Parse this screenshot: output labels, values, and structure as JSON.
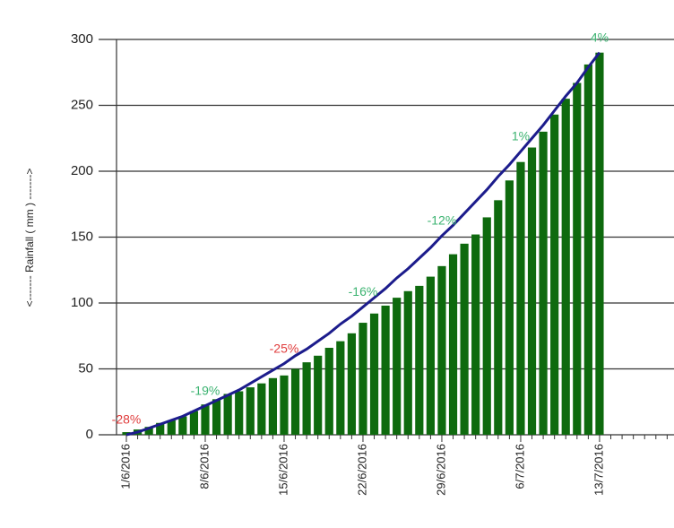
{
  "chart_data": {
    "type": "bar",
    "y_label": "<------- Rainfall ( mm ) ------->",
    "categories": [
      "1/6/2016",
      null,
      null,
      null,
      null,
      null,
      null,
      "8/6/2016",
      null,
      null,
      null,
      null,
      null,
      null,
      "15/6/2016",
      null,
      null,
      null,
      null,
      null,
      null,
      "22/6/2016",
      null,
      null,
      null,
      null,
      null,
      null,
      "29/6/2016",
      null,
      null,
      null,
      null,
      null,
      null,
      "6/7/2016",
      null,
      null,
      null,
      null,
      null,
      null,
      "13/7/2016",
      null,
      null,
      null,
      null,
      null,
      null
    ],
    "series": [
      {
        "type": "bar",
        "color": "#0e6a0e",
        "values": [
          2,
          4,
          6,
          9,
          11,
          14,
          18,
          23,
          27,
          31,
          33,
          36,
          39,
          43,
          45,
          50,
          55,
          60,
          66,
          71,
          77,
          85,
          92,
          98,
          104,
          109,
          113,
          120,
          128,
          137,
          145,
          152,
          165,
          178,
          193,
          207,
          218,
          230,
          243,
          255,
          267,
          281,
          290,
          null,
          null,
          null,
          null,
          null,
          null
        ]
      },
      {
        "type": "line",
        "color": "#1c1c8c",
        "values": [
          0,
          2,
          5,
          8,
          11,
          14,
          18,
          22,
          26,
          30,
          34,
          39,
          44,
          49,
          54,
          60,
          65,
          71,
          77,
          84,
          90,
          97,
          104,
          111,
          119,
          126,
          134,
          142,
          151,
          159,
          168,
          177,
          186,
          196,
          205,
          215,
          225,
          235,
          246,
          257,
          267,
          279,
          290,
          null,
          null,
          null,
          null,
          null,
          null
        ],
        "value_labels": [
          "-28%",
          null,
          null,
          null,
          null,
          null,
          null,
          "-19%",
          null,
          null,
          null,
          null,
          null,
          null,
          "-25%",
          null,
          null,
          null,
          null,
          null,
          null,
          "-16%",
          null,
          null,
          null,
          null,
          null,
          null,
          "-12%",
          null,
          null,
          null,
          null,
          null,
          null,
          "1%",
          null,
          null,
          null,
          null,
          null,
          null,
          "4%",
          null,
          null,
          null,
          null,
          null,
          null
        ],
        "value_label_colors": [
          "#e03c3c",
          null,
          null,
          null,
          null,
          null,
          null,
          "#3cb371",
          null,
          null,
          null,
          null,
          null,
          null,
          "#e03c3c",
          null,
          null,
          null,
          null,
          null,
          null,
          "#3cb371",
          null,
          null,
          null,
          null,
          null,
          null,
          "#3cb371",
          null,
          null,
          null,
          null,
          null,
          null,
          "#3cb371",
          null,
          null,
          null,
          null,
          null,
          null,
          "#3cb371",
          null,
          null,
          null,
          null,
          null,
          null
        ]
      }
    ],
    "ylim": [
      0,
      300
    ],
    "yticks": [
      0,
      50,
      100,
      150,
      200,
      250,
      300
    ],
    "grid": true
  }
}
